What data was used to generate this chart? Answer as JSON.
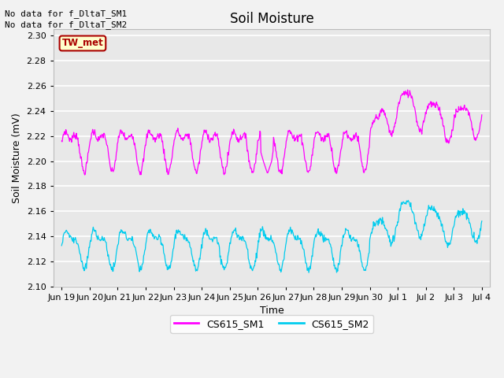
{
  "title": "Soil Moisture",
  "ylabel": "Soil Moisture (mV)",
  "xlabel": "Time",
  "ylim": [
    2.1,
    2.305
  ],
  "yticks": [
    2.1,
    2.12,
    2.14,
    2.16,
    2.18,
    2.2,
    2.22,
    2.24,
    2.26,
    2.28,
    2.3
  ],
  "xtick_labels": [
    "Jun 19",
    "Jun 20",
    "Jun 21",
    "Jun 22",
    "Jun 23",
    "Jun 24",
    "Jun 25",
    "Jun 26",
    "Jun 27",
    "Jun 28",
    "Jun 29",
    "Jun 30",
    "Jul 1",
    "Jul 2",
    "Jul 3",
    "Jul 4"
  ],
  "color_SM1": "#FF00FF",
  "color_SM2": "#00CCEE",
  "legend_SM1": "CS615_SM1",
  "legend_SM2": "CS615_SM2",
  "no_data_text1": "No data for f_DltaT_SM1",
  "no_data_text2": "No data for f_DltaT_SM2",
  "tw_met_label": "TW_met",
  "tw_met_bg": "#FFFFCC",
  "tw_met_border": "#AA0000",
  "tw_met_text_color": "#AA0000",
  "plot_bg_color": "#E8E8E8",
  "fig_bg_color": "#F2F2F2",
  "title_fontsize": 12,
  "label_fontsize": 9,
  "tick_fontsize": 8,
  "grid_color": "#FFFFFF",
  "note_fontsize": 8,
  "legend_fontsize": 9
}
